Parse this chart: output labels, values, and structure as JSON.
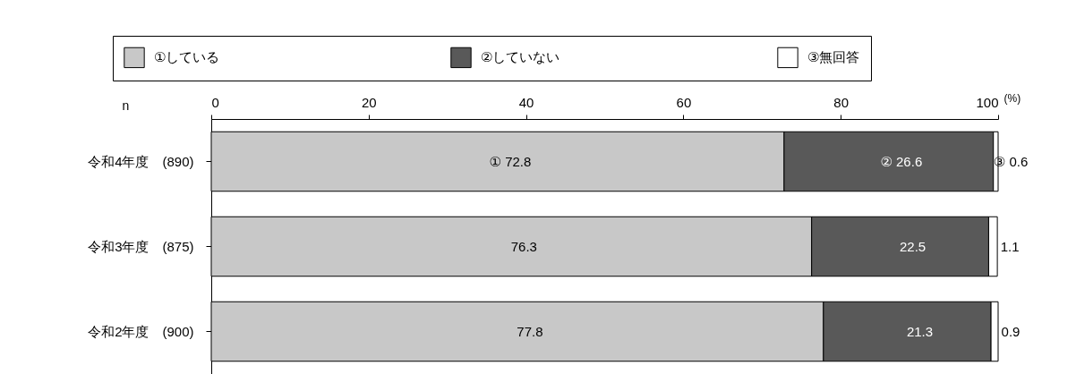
{
  "chart_data": {
    "type": "bar",
    "orientation": "horizontal",
    "stacked": true,
    "ylabel": "n",
    "xlabel": "(%)",
    "categories": [
      "令和4年度　(890)",
      "令和3年度　(875)",
      "令和2年度　(900)"
    ],
    "series": [
      {
        "name": "①している",
        "color": "#c8c8c8",
        "values": [
          72.8,
          76.3,
          77.8
        ],
        "value_labels": [
          "① 72.8",
          "76.3",
          "77.8"
        ]
      },
      {
        "name": "②していない",
        "color": "#595959",
        "values": [
          26.6,
          22.5,
          21.3
        ],
        "value_labels": [
          "② 26.6",
          "22.5",
          "21.3"
        ]
      },
      {
        "name": "③無回答",
        "color": "#ffffff",
        "values": [
          0.6,
          1.1,
          0.9
        ],
        "value_labels": [
          "③ 0.6",
          "1.1",
          "0.9"
        ]
      }
    ],
    "xlim": [
      0,
      100
    ],
    "xticks": [
      0,
      20,
      40,
      60,
      80,
      100
    ],
    "grid": false,
    "legend": "top"
  }
}
